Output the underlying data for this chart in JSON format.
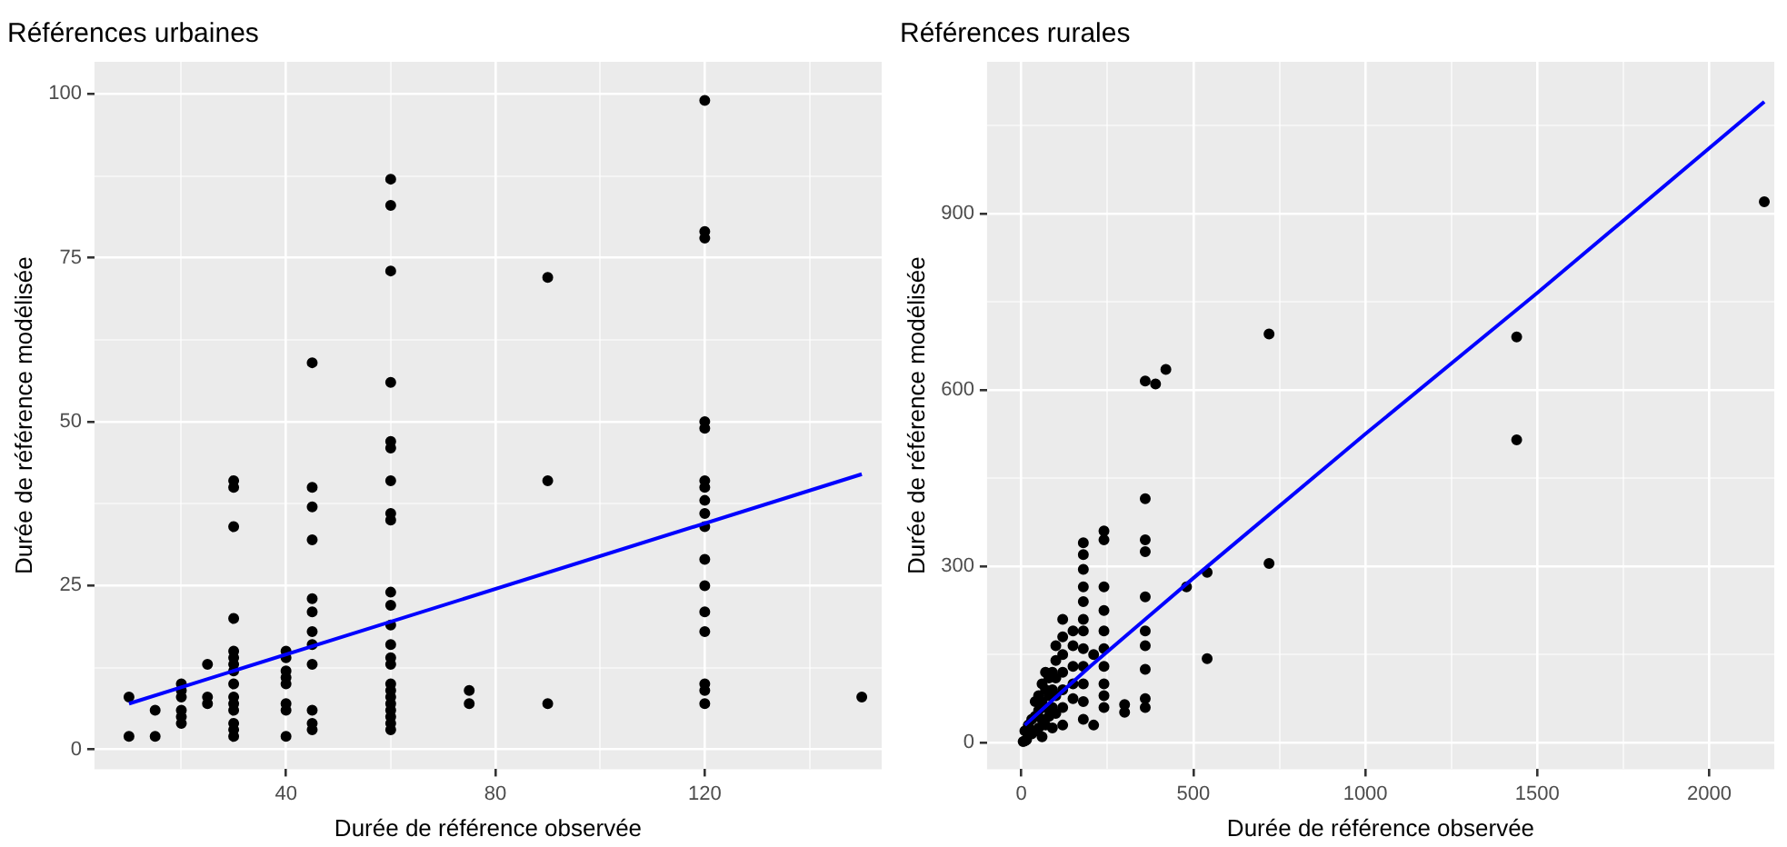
{
  "chart_data": [
    {
      "type": "scatter",
      "title": "Références urbaines",
      "xlabel": "Durée de référence observée",
      "ylabel": "Durée de référence modélisée",
      "xlim": [
        3.4,
        153.8
      ],
      "ylim": [
        -3,
        104.9
      ],
      "xticks": [
        {
          "value": 20,
          "label": null
        },
        40,
        {
          "value": 60,
          "label": null
        },
        80,
        {
          "value": 100,
          "label": null
        },
        120,
        {
          "value": 140,
          "label": null
        }
      ],
      "yticks": [
        0,
        {
          "value": 12.5,
          "label": null
        },
        25,
        {
          "value": 37.5,
          "label": null
        },
        50,
        {
          "value": 62.5,
          "label": null
        },
        75,
        {
          "value": 87.5,
          "label": null
        },
        100
      ],
      "grid": true,
      "legend": false,
      "marker": "circle",
      "series": [
        {
          "type": "scatter",
          "color": "#000000",
          "x": [
            10,
            10,
            15,
            15,
            20,
            20,
            20,
            20,
            20,
            20,
            25,
            25,
            25,
            30,
            30,
            30,
            30,
            30,
            30,
            30,
            30,
            30,
            30,
            30,
            30,
            30,
            30,
            30,
            40,
            40,
            40,
            40,
            40,
            40,
            40,
            40,
            45,
            45,
            45,
            45,
            45,
            45,
            45,
            45,
            45,
            45,
            45,
            45,
            60,
            60,
            60,
            60,
            60,
            60,
            60,
            60,
            60,
            60,
            60,
            60,
            60,
            60,
            60,
            60,
            60,
            60,
            60,
            60,
            60,
            60,
            60,
            75,
            75,
            90,
            90,
            90,
            120,
            120,
            120,
            120,
            120,
            120,
            120,
            120,
            120,
            120,
            120,
            120,
            120,
            120,
            120,
            120,
            120,
            150
          ],
          "values": [
            8,
            2,
            6,
            2,
            10,
            9,
            8,
            6,
            5,
            4,
            13,
            8,
            7,
            41,
            40,
            34,
            20,
            15,
            14,
            13,
            12,
            10,
            8,
            7,
            6,
            4,
            3,
            2,
            15,
            14,
            12,
            11,
            10,
            7,
            6,
            2,
            59,
            40,
            37,
            32,
            23,
            21,
            18,
            16,
            13,
            6,
            4,
            3,
            87,
            83,
            73,
            56,
            47,
            46,
            41,
            36,
            35,
            24,
            22,
            19,
            16,
            14,
            13,
            10,
            9,
            8,
            7,
            6,
            5,
            4,
            3,
            9,
            7,
            72,
            41,
            7,
            99,
            79,
            78,
            50,
            49,
            41,
            40,
            38,
            36,
            34,
            29,
            25,
            21,
            18,
            10,
            9,
            7,
            8
          ]
        },
        {
          "type": "line",
          "color": "#0000ff",
          "marker": "none",
          "x": [
            10,
            150
          ],
          "values": [
            7,
            42
          ]
        }
      ]
    },
    {
      "type": "scatter",
      "title": "Références rurales",
      "xlabel": "Durée de référence observée",
      "ylabel": "Durée de référence modélisée",
      "xlim": [
        -100,
        2189
      ],
      "ylim": [
        -45,
        1158
      ],
      "xticks": [
        0,
        {
          "value": 250,
          "label": null
        },
        500,
        {
          "value": 750,
          "label": null
        },
        1000,
        {
          "value": 1250,
          "label": null
        },
        1500,
        {
          "value": 1750,
          "label": null
        },
        2000
      ],
      "yticks": [
        0,
        {
          "value": 150,
          "label": null
        },
        300,
        {
          "value": 450,
          "label": null
        },
        600,
        {
          "value": 750,
          "label": null
        },
        900,
        {
          "value": 1050,
          "label": null
        }
      ],
      "grid": true,
      "legend": false,
      "marker": "circle",
      "series": [
        {
          "type": "scatter",
          "color": "#000000",
          "x": [
            2160,
            1440,
            1440,
            720,
            720,
            540,
            540,
            480,
            420,
            390,
            360,
            360,
            360,
            360,
            360,
            360,
            360,
            360,
            360,
            360,
            300,
            300,
            240,
            240,
            240,
            240,
            240,
            240,
            240,
            240,
            240,
            240,
            210,
            210,
            180,
            180,
            180,
            180,
            180,
            180,
            180,
            180,
            180,
            180,
            180,
            180,
            150,
            150,
            150,
            150,
            150,
            120,
            120,
            120,
            120,
            120,
            120,
            120,
            100,
            100,
            100,
            100,
            100,
            90,
            90,
            90,
            90,
            80,
            80,
            80,
            70,
            70,
            70,
            70,
            60,
            60,
            60,
            60,
            50,
            50,
            50,
            40,
            40,
            40,
            30,
            30,
            20,
            15,
            10,
            10,
            5
          ],
          "values": [
            920,
            690,
            515,
            695,
            305,
            290,
            143,
            265,
            635,
            610,
            615,
            415,
            345,
            325,
            248,
            190,
            165,
            125,
            75,
            60,
            65,
            52,
            360,
            345,
            265,
            225,
            190,
            160,
            130,
            100,
            80,
            60,
            150,
            30,
            340,
            320,
            295,
            265,
            240,
            210,
            190,
            160,
            130,
            100,
            70,
            40,
            190,
            165,
            130,
            100,
            75,
            210,
            180,
            150,
            120,
            90,
            60,
            30,
            165,
            140,
            110,
            80,
            50,
            120,
            90,
            60,
            25,
            110,
            80,
            45,
            120,
            90,
            60,
            30,
            100,
            70,
            40,
            10,
            80,
            55,
            25,
            70,
            45,
            20,
            40,
            15,
            30,
            5,
            20,
            3,
            2
          ]
        },
        {
          "type": "line",
          "color": "#0000ff",
          "marker": "none",
          "x": [
            10,
            200,
            500,
            1000,
            1500,
            2160
          ],
          "values": [
            30,
            130,
            280,
            525,
            765,
            1090
          ]
        }
      ]
    }
  ]
}
